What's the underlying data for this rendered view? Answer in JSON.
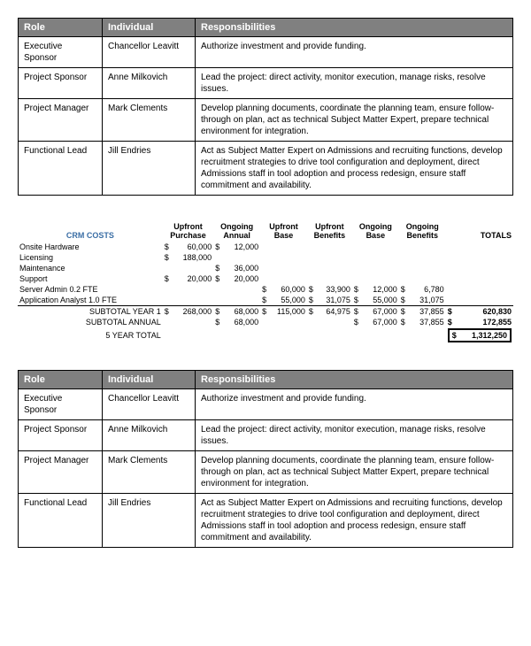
{
  "rolesTable": {
    "headers": [
      "Role",
      "Individual",
      "Responsibilities"
    ],
    "rows": [
      {
        "role": "Executive Sponsor",
        "individual": "Chancellor Leavitt",
        "resp": "Authorize investment and provide funding."
      },
      {
        "role": "Project Sponsor",
        "individual": "Anne Milkovich",
        "resp": "Lead the project: direct activity, monitor execution, manage risks, resolve issues."
      },
      {
        "role": "Project Manager",
        "individual": "Mark Clements",
        "resp": "Develop planning documents, coordinate the planning team, ensure follow-through on plan, act as technical Subject Matter Expert, prepare technical environment for integration."
      },
      {
        "role": "Functional Lead",
        "individual": "Jill Endries",
        "resp": "Act as Subject Matter Expert on Admissions and recruiting functions, develop recruitment strategies to drive tool configuration and deployment, direct Admissions staff in tool adoption and process redesign, ensure staff commitment and availability."
      }
    ]
  },
  "costs": {
    "title": "CRM COSTS",
    "title_color": "#3a6ea5",
    "columns": [
      "Upfront Purchase",
      "Ongoing Annual",
      "Upfront Base",
      "Upfront Benefits",
      "Ongoing Base",
      "Ongoing Benefits",
      "TOTALS"
    ],
    "lines": [
      {
        "label": "Onsite Hardware",
        "vals": [
          "60,000",
          "12,000",
          "",
          "",
          "",
          "",
          ""
        ]
      },
      {
        "label": "Licensing",
        "vals": [
          "188,000",
          "",
          "",
          "",
          "",
          "",
          ""
        ]
      },
      {
        "label": "Maintenance",
        "vals": [
          "",
          "36,000",
          "",
          "",
          "",
          "",
          ""
        ]
      },
      {
        "label": "Support",
        "vals": [
          "20,000",
          "20,000",
          "",
          "",
          "",
          "",
          ""
        ]
      },
      {
        "label": "Server Admin 0.2 FTE",
        "vals": [
          "",
          "",
          "60,000",
          "33,900",
          "12,000",
          "6,780",
          ""
        ]
      },
      {
        "label": "Application Analyst 1.0 FTE",
        "vals": [
          "",
          "",
          "55,000",
          "31,075",
          "55,000",
          "31,075",
          ""
        ]
      }
    ],
    "subtotals": [
      {
        "label": "SUBTOTAL YEAR 1",
        "vals": [
          "268,000",
          "68,000",
          "115,000",
          "64,975",
          "67,000",
          "37,855",
          "620,830"
        ]
      },
      {
        "label": "SUBTOTAL ANNUAL",
        "vals": [
          "",
          "68,000",
          "",
          "",
          "67,000",
          "37,855",
          "172,855"
        ]
      }
    ],
    "grandTotal": {
      "label": "5 YEAR TOTAL",
      "value": "1,312,250"
    }
  }
}
